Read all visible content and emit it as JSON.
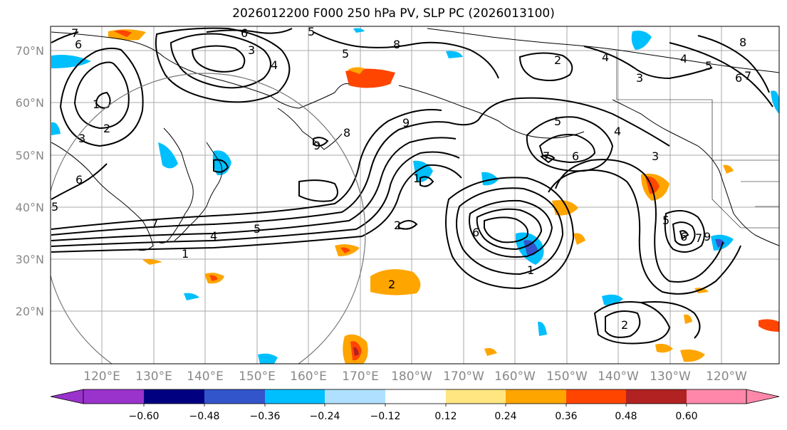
{
  "title": "2026012200 F000 250 hPa PV, SLP PC (2026013100)",
  "lat_labels": [
    "70°N",
    "60°N",
    "50°N",
    "40°N",
    "30°N",
    "20°N"
  ],
  "lon_labels": [
    "120°E",
    "130°E",
    "140°E",
    "150°E",
    "160°E",
    "170°E",
    "180°W",
    "170°W",
    "160°W",
    "150°W",
    "140°W",
    "130°W",
    "120°W"
  ],
  "colorbar": {
    "ticks": [
      "−0.60",
      "−0.48",
      "−0.36",
      "−0.24",
      "−0.12",
      "0.12",
      "0.24",
      "0.36",
      "0.48",
      "0.60"
    ],
    "colors": [
      "#9933cc",
      "#000080",
      "#3355cc",
      "#00bfff",
      "#b0e0ff",
      "#ffffff",
      "#ffe680",
      "#ffa500",
      "#ff4500",
      "#b22222",
      "#ff88aa"
    ]
  },
  "contour_labels": [
    "7",
    "6",
    "6",
    "5",
    "3",
    "4",
    "5",
    "8",
    "2",
    "4",
    "3",
    "4",
    "5",
    "6",
    "7",
    "8",
    "1",
    "2",
    "3",
    "6",
    "5",
    "7",
    "4",
    "1",
    "9",
    "8",
    "9",
    "1",
    "2",
    "5",
    "6",
    "6",
    "7",
    "5",
    "4",
    "1",
    "5",
    "6",
    "7",
    "9",
    "2",
    "3",
    "2"
  ],
  "pv_colors": {
    "orange": "#ffa500",
    "red": "#ff4500",
    "darkred": "#b22222",
    "lightblue": "#00bfff",
    "blue": "#3355cc"
  }
}
